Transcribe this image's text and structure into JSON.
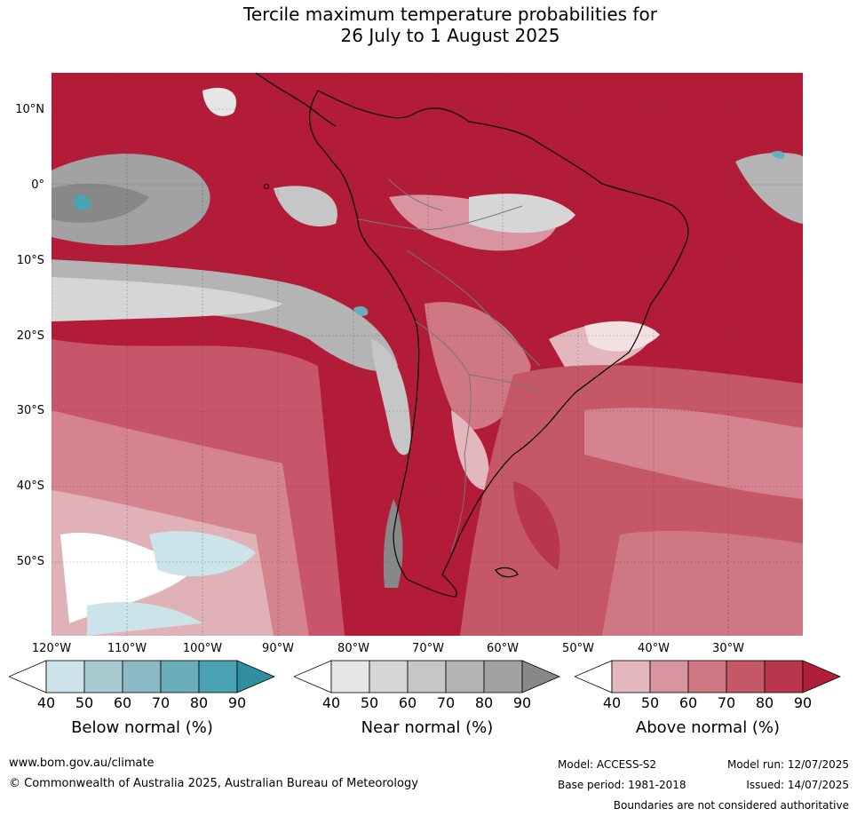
{
  "title": {
    "line1": "Tercile maximum temperature probabilities for",
    "line2": "26 July to 1 August 2025"
  },
  "map": {
    "latitude_labels": [
      "10°N",
      "0°",
      "10°S",
      "20°S",
      "30°S",
      "40°S",
      "50°S"
    ],
    "longitude_labels": [
      "120°W",
      "110°W",
      "100°W",
      "90°W",
      "80°W",
      "70°W",
      "60°W",
      "50°W",
      "40°W",
      "30°W"
    ]
  },
  "colorbars": [
    {
      "label": "Below normal (%)",
      "ticks": [
        "40",
        "50",
        "60",
        "70",
        "80",
        "90"
      ],
      "colors": [
        "#cbe3e9",
        "#a8cad1",
        "#8bbac5",
        "#6aadbb",
        "#4aa2b2",
        "#2f8ea0"
      ]
    },
    {
      "label": "Near normal (%)",
      "ticks": [
        "40",
        "50",
        "60",
        "70",
        "80",
        "90"
      ],
      "colors": [
        "#e6e6e6",
        "#d6d6d6",
        "#c6c6c6",
        "#b4b4b4",
        "#a2a2a2",
        "#888888"
      ]
    },
    {
      "label": "Above normal (%)",
      "ticks": [
        "40",
        "50",
        "60",
        "70",
        "80",
        "90"
      ],
      "colors": [
        "#e3b7bd",
        "#d8959f",
        "#cf7783",
        "#c45867",
        "#b9374d",
        "#b01e39"
      ]
    }
  ],
  "footer": {
    "website": "www.bom.gov.au/climate",
    "copyright": "© Commonwealth of Australia 2025, Australian Bureau of Meteorology",
    "model": "Model: ACCESS-S2",
    "model_run": "Model run: 12/07/2025",
    "base_period": "Base period: 1981-2018",
    "issued": "Issued: 14/07/2025",
    "disclaimer": "Boundaries are not considered authoritative"
  }
}
